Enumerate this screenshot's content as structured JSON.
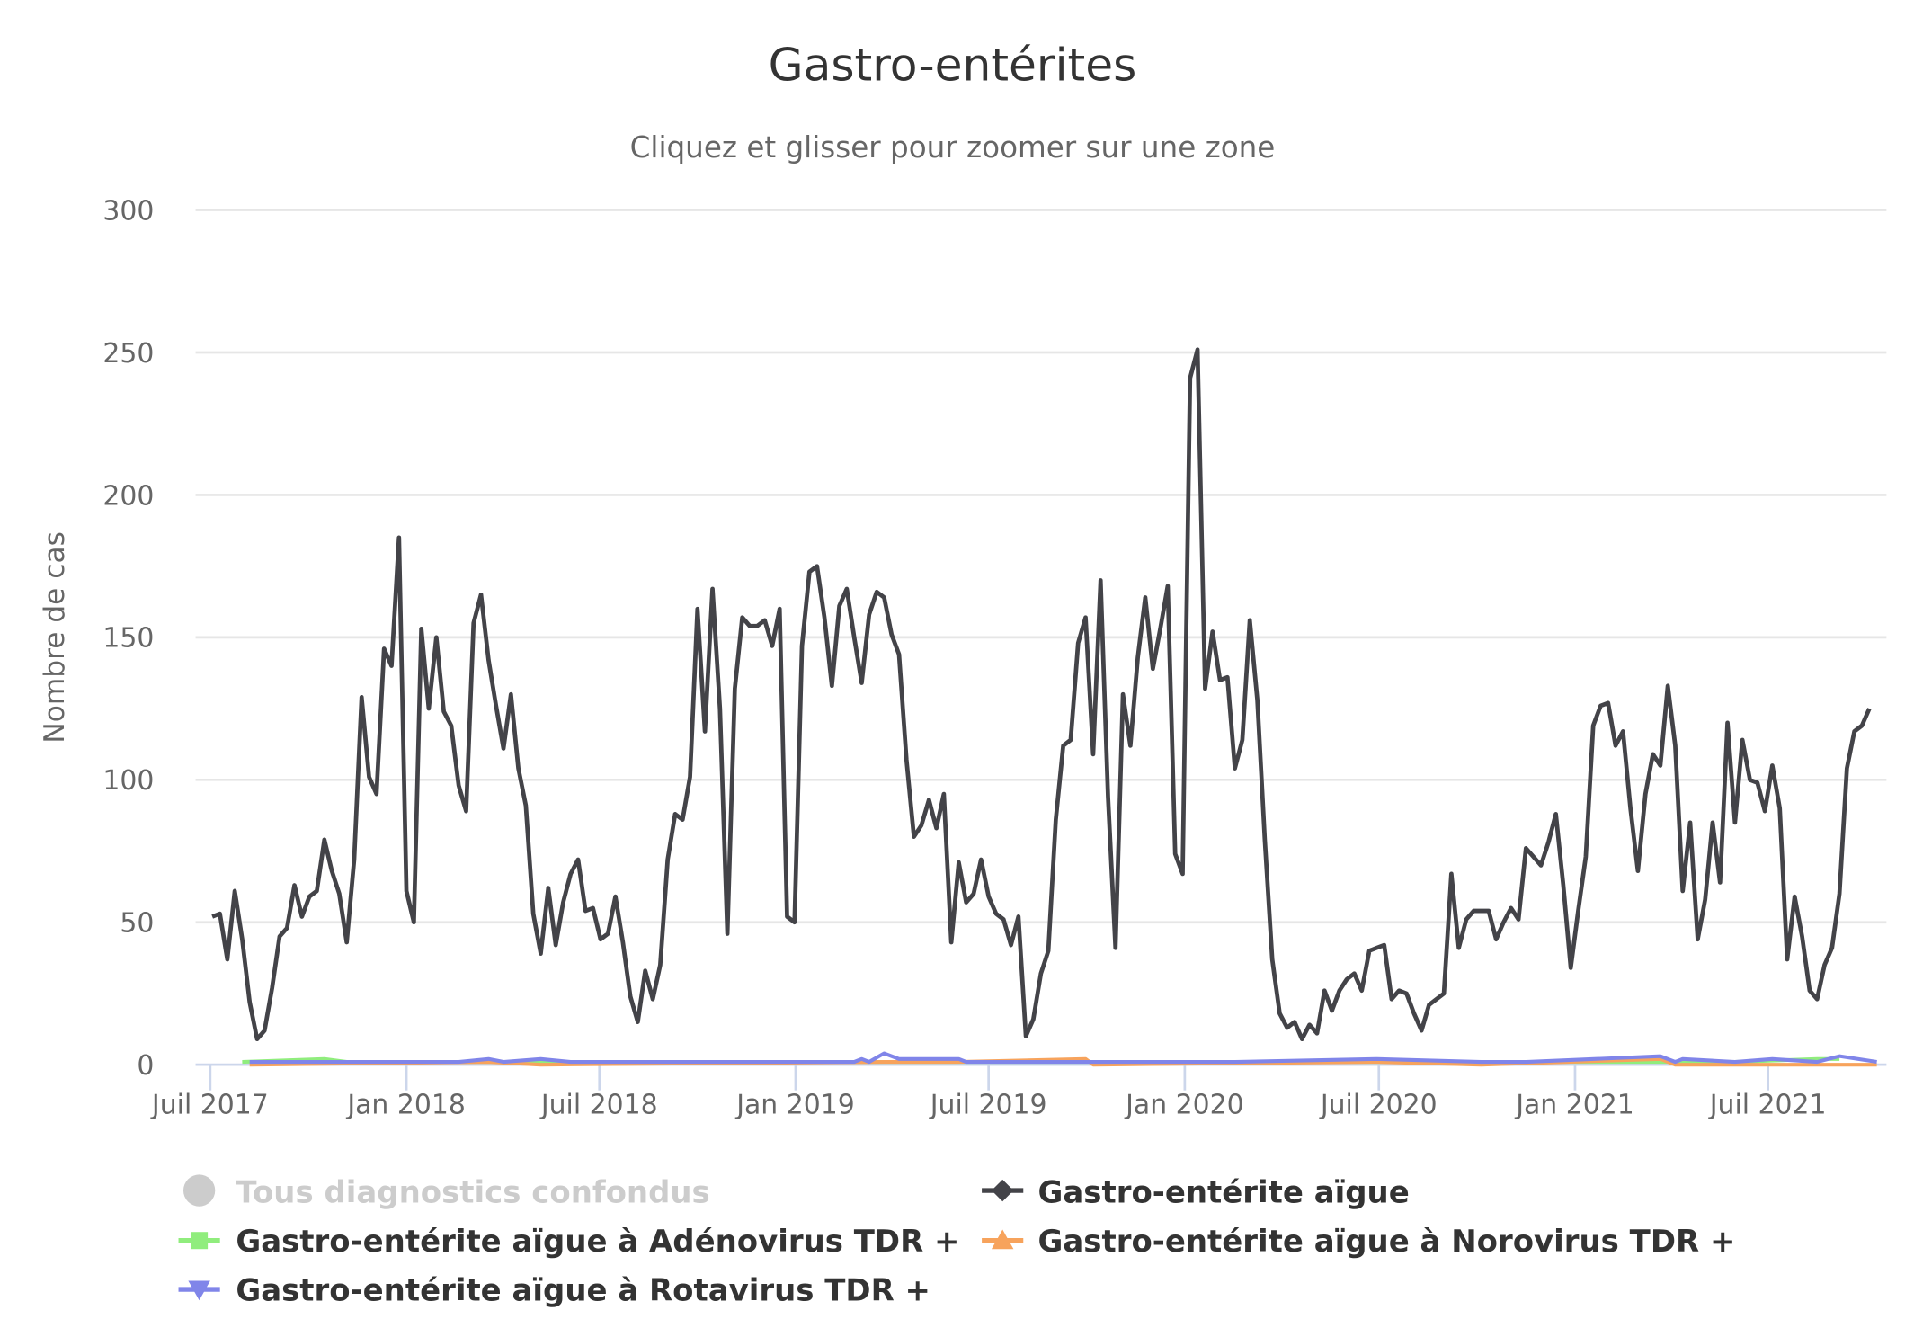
{
  "title": "Gastro-entérites",
  "subtitle": "Cliquez et glisser pour zoomer sur une zone",
  "chart_data": {
    "type": "line",
    "title": "Gastro-entérites",
    "subtitle": "Cliquez et glisser pour zoomer sur une zone",
    "xlabel": "",
    "ylabel": "Nombre de cas",
    "ylim": [
      0,
      300
    ],
    "yticks": [
      0,
      50,
      100,
      150,
      200,
      250,
      300
    ],
    "xlim": [
      "2017-07-01",
      "2021-10-25"
    ],
    "xticks": [
      {
        "date": "2017-07-01",
        "label": "Juil 2017"
      },
      {
        "date": "2018-01-01",
        "label": "Jan 2018"
      },
      {
        "date": "2018-07-01",
        "label": "Juil 2018"
      },
      {
        "date": "2019-01-01",
        "label": "Jan 2019"
      },
      {
        "date": "2019-07-01",
        "label": "Juil 2019"
      },
      {
        "date": "2020-01-01",
        "label": "Jan 2020"
      },
      {
        "date": "2020-07-01",
        "label": "Juil 2020"
      },
      {
        "date": "2021-01-01",
        "label": "Jan 2021"
      },
      {
        "date": "2021-07-01",
        "label": "Juil 2021"
      }
    ],
    "grid": true,
    "legend_position": "bottom",
    "series": [
      {
        "name": "Tous diagnostics confondus",
        "color": "#cccccc",
        "marker": "circle",
        "visible": false,
        "points": []
      },
      {
        "name": "Gastro-entérite aïgue",
        "color": "#434348",
        "marker": "diamond",
        "visible": true,
        "weekly_start": "2017-07-03",
        "weekly_values": [
          52,
          53,
          37,
          61,
          44,
          22,
          9,
          12,
          27,
          45,
          48,
          63,
          52,
          59,
          61,
          79,
          68,
          60,
          43,
          72,
          129,
          101,
          95,
          146,
          140,
          185,
          61,
          50,
          153,
          125,
          150,
          124,
          119,
          98,
          89,
          155,
          165,
          142,
          126,
          111,
          130,
          104,
          91,
          53,
          39,
          62,
          42,
          57,
          67,
          72,
          54,
          55,
          44,
          46,
          59,
          43,
          24,
          15,
          33,
          23,
          35,
          72,
          88,
          86,
          101,
          160,
          117,
          167,
          125,
          46,
          132,
          157,
          154,
          154,
          156,
          147,
          160,
          52,
          50,
          147,
          173,
          175,
          157,
          133,
          161,
          167,
          150,
          134,
          158,
          166,
          164,
          151,
          144,
          107,
          80,
          84,
          93,
          83,
          95,
          43,
          71,
          57,
          60,
          72,
          59,
          53,
          51,
          42,
          52,
          10,
          16,
          32,
          40,
          86,
          112,
          114,
          148,
          157,
          109,
          170,
          94,
          41,
          130,
          112,
          143,
          164,
          139,
          153,
          168,
          74,
          67,
          241,
          251,
          132,
          152,
          135,
          136,
          104,
          114,
          156,
          128,
          79,
          37,
          18,
          13,
          15,
          9,
          14,
          11,
          26,
          19,
          26,
          30,
          32,
          26,
          40,
          41,
          42,
          23,
          26,
          25,
          18,
          12,
          21,
          23,
          25,
          67,
          41,
          51,
          54,
          54,
          54,
          44,
          50,
          55,
          51,
          76,
          73,
          70,
          78,
          88,
          63,
          34,
          54,
          73,
          119,
          126,
          127,
          112,
          117,
          90,
          68,
          95,
          109,
          105,
          133,
          112,
          61,
          85,
          44,
          58,
          85,
          64,
          120,
          85,
          114,
          100,
          99,
          89,
          105,
          90,
          37,
          59,
          45,
          26,
          23,
          35,
          41,
          60,
          104,
          117,
          119,
          125
        ]
      },
      {
        "name": "Gastro-entérite aïgue à Adénovirus TDR +",
        "color": "#90ed7d",
        "marker": "square",
        "visible": true,
        "points": [
          [
            "2017-07-31",
            1
          ],
          [
            "2017-10-16",
            2
          ],
          [
            "2017-11-06",
            1
          ],
          [
            "2021-05-31",
            1
          ],
          [
            "2021-08-16",
            2
          ],
          [
            "2021-09-06",
            2
          ]
        ]
      },
      {
        "name": "Gastro-entérite aïgue à Norovirus TDR +",
        "color": "#f7a35c",
        "marker": "triangle",
        "visible": true,
        "points": [
          [
            "2017-08-07",
            0
          ],
          [
            "2018-03-19",
            1
          ],
          [
            "2018-05-07",
            0
          ],
          [
            "2019-03-25",
            1
          ],
          [
            "2019-06-03",
            1
          ],
          [
            "2019-09-30",
            2
          ],
          [
            "2019-10-07",
            0
          ],
          [
            "2020-06-29",
            1
          ],
          [
            "2020-10-05",
            0
          ],
          [
            "2021-03-22",
            2
          ],
          [
            "2021-04-05",
            0
          ],
          [
            "2021-10-11",
            0
          ]
        ]
      },
      {
        "name": "Gastro-entérite aïgue à Rotavirus TDR +",
        "color": "#8085e9",
        "marker": "triangle-down",
        "visible": true,
        "points": [
          [
            "2017-08-07",
            1
          ],
          [
            "2018-02-19",
            1
          ],
          [
            "2018-03-19",
            2
          ],
          [
            "2018-04-02",
            1
          ],
          [
            "2018-05-07",
            2
          ],
          [
            "2018-06-04",
            1
          ],
          [
            "2019-02-25",
            1
          ],
          [
            "2019-03-04",
            2
          ],
          [
            "2019-03-11",
            1
          ],
          [
            "2019-03-25",
            4
          ],
          [
            "2019-04-08",
            2
          ],
          [
            "2019-06-03",
            2
          ],
          [
            "2019-06-10",
            1
          ],
          [
            "2020-02-17",
            1
          ],
          [
            "2020-06-29",
            2
          ],
          [
            "2020-10-05",
            1
          ],
          [
            "2020-11-16",
            1
          ],
          [
            "2021-03-22",
            3
          ],
          [
            "2021-04-05",
            1
          ],
          [
            "2021-04-12",
            2
          ],
          [
            "2021-05-31",
            1
          ],
          [
            "2021-07-05",
            2
          ],
          [
            "2021-08-16",
            1
          ],
          [
            "2021-09-06",
            3
          ],
          [
            "2021-10-11",
            1
          ]
        ]
      }
    ]
  },
  "legend": {
    "items": [
      {
        "label": "Tous diagnostics confondus"
      },
      {
        "label": "Gastro-entérite aïgue"
      },
      {
        "label": "Gastro-entérite aïgue à Adénovirus TDR +"
      },
      {
        "label": "Gastro-entérite aïgue à Norovirus TDR +"
      },
      {
        "label": "Gastro-entérite aïgue à Rotavirus TDR +"
      }
    ]
  }
}
